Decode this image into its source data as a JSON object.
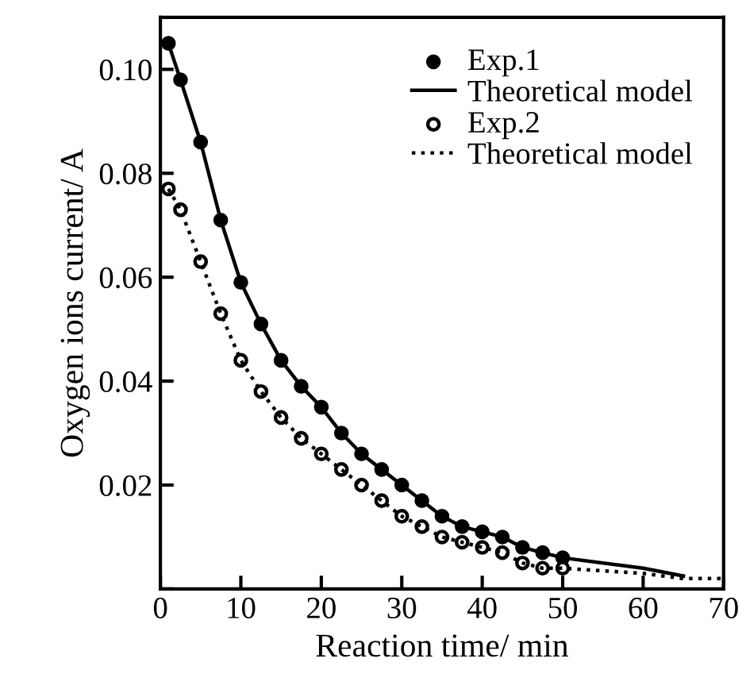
{
  "chart_data": {
    "type": "scatter",
    "xlabel": "Reaction time/ min",
    "ylabel": "Oxygen ions current/ A",
    "xlim": [
      0,
      70
    ],
    "ylim": [
      0,
      0.11
    ],
    "xticks": [
      0,
      10,
      20,
      30,
      40,
      50,
      60,
      70
    ],
    "yticks": [
      {
        "value": 0,
        "label": null
      },
      {
        "value": 0.02,
        "label": "0.02"
      },
      {
        "value": 0.04,
        "label": "0.04"
      },
      {
        "value": 0.06,
        "label": "0.06"
      },
      {
        "value": 0.08,
        "label": "0.08"
      },
      {
        "value": 0.1,
        "label": "0.10"
      }
    ],
    "grid": false,
    "legend": "top right",
    "series": [
      {
        "name": "Exp.1",
        "marker": "circle",
        "color": "#000000",
        "x": [
          1,
          2.5,
          5,
          7.5,
          10,
          12.5,
          15,
          17.5,
          20,
          22.5,
          25,
          27.5,
          30,
          32.5,
          35,
          37.5,
          40,
          42.5,
          45,
          47.5,
          50
        ],
        "values": [
          0.105,
          0.098,
          0.086,
          0.071,
          0.059,
          0.051,
          0.044,
          0.039,
          0.035,
          0.03,
          0.026,
          0.023,
          0.02,
          0.017,
          0.014,
          0.012,
          0.011,
          0.01,
          0.008,
          0.007,
          0.006
        ]
      },
      {
        "name": "Theoretical model",
        "type": "line",
        "line_style": "solid",
        "color": "#000000",
        "x": [
          1,
          2.5,
          5,
          7.5,
          10,
          12.5,
          15,
          17.5,
          20,
          22.5,
          25,
          27.5,
          30,
          32.5,
          35,
          37.5,
          40,
          42.5,
          45,
          47.5,
          50,
          55,
          60,
          65
        ],
        "values": [
          0.105,
          0.098,
          0.086,
          0.071,
          0.059,
          0.051,
          0.044,
          0.039,
          0.035,
          0.03,
          0.026,
          0.023,
          0.02,
          0.017,
          0.014,
          0.012,
          0.011,
          0.01,
          0.008,
          0.007,
          0.006,
          0.005,
          0.004,
          0.0025
        ]
      },
      {
        "name": "Exp.2",
        "marker": "open circle",
        "color": "#000000",
        "x": [
          1,
          2.5,
          5,
          7.5,
          10,
          12.5,
          15,
          17.5,
          20,
          22.5,
          25,
          27.5,
          30,
          32.5,
          35,
          37.5,
          40,
          42.5,
          45,
          47.5,
          50
        ],
        "values": [
          0.077,
          0.073,
          0.063,
          0.053,
          0.044,
          0.038,
          0.033,
          0.029,
          0.026,
          0.023,
          0.02,
          0.017,
          0.014,
          0.012,
          0.01,
          0.009,
          0.008,
          0.007,
          0.005,
          0.004,
          0.004
        ]
      },
      {
        "name": "Theoretical model",
        "type": "line",
        "line_style": "dotted",
        "color": "#000000",
        "x": [
          1,
          2.5,
          5,
          7.5,
          10,
          12.5,
          15,
          17.5,
          20,
          22.5,
          25,
          27.5,
          30,
          32.5,
          35,
          37.5,
          40,
          42.5,
          45,
          47.5,
          50,
          55,
          60,
          65,
          70
        ],
        "values": [
          0.077,
          0.073,
          0.063,
          0.053,
          0.044,
          0.038,
          0.033,
          0.029,
          0.026,
          0.023,
          0.02,
          0.017,
          0.014,
          0.012,
          0.01,
          0.009,
          0.008,
          0.007,
          0.005,
          0.004,
          0.004,
          0.0035,
          0.003,
          0.002,
          0.002
        ]
      }
    ]
  }
}
